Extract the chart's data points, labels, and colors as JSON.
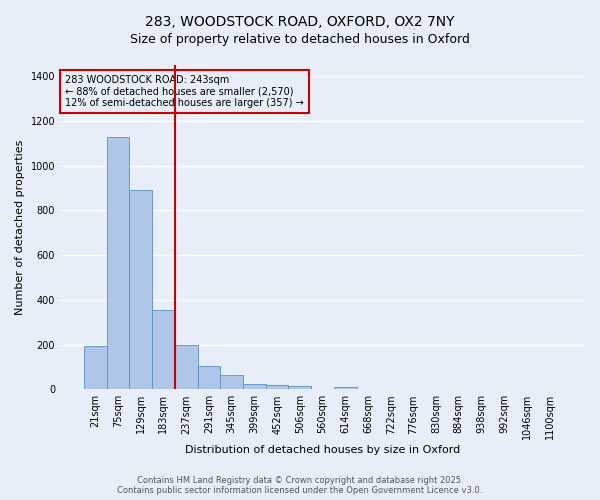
{
  "title_line1": "283, WOODSTOCK ROAD, OXFORD, OX2 7NY",
  "title_line2": "Size of property relative to detached houses in Oxford",
  "xlabel": "Distribution of detached houses by size in Oxford",
  "ylabel": "Number of detached properties",
  "categories": [
    "21sqm",
    "75sqm",
    "129sqm",
    "183sqm",
    "237sqm",
    "291sqm",
    "345sqm",
    "399sqm",
    "452sqm",
    "506sqm",
    "560sqm",
    "614sqm",
    "668sqm",
    "722sqm",
    "776sqm",
    "830sqm",
    "884sqm",
    "938sqm",
    "992sqm",
    "1046sqm",
    "1100sqm"
  ],
  "values": [
    195,
    1130,
    893,
    353,
    196,
    103,
    62,
    25,
    20,
    13,
    0,
    12,
    0,
    0,
    0,
    0,
    0,
    0,
    0,
    0,
    0
  ],
  "bar_color": "#aec6e8",
  "bar_edge_color": "#5b8ec4",
  "background_color": "#e8eef8",
  "grid_color": "#ffffff",
  "vline_color": "#cc0000",
  "annotation_title": "283 WOODSTOCK ROAD: 243sqm",
  "annotation_line1": "← 88% of detached houses are smaller (2,570)",
  "annotation_line2": "12% of semi-detached houses are larger (357) →",
  "annotation_box_color": "#cc0000",
  "ylim": [
    0,
    1450
  ],
  "yticks": [
    0,
    200,
    400,
    600,
    800,
    1000,
    1200,
    1400
  ],
  "footer_line1": "Contains HM Land Registry data © Crown copyright and database right 2025.",
  "footer_line2": "Contains public sector information licensed under the Open Government Licence v3.0.",
  "title_fontsize": 10,
  "subtitle_fontsize": 9,
  "tick_fontsize": 7,
  "label_fontsize": 8,
  "annotation_fontsize": 7,
  "footer_fontsize": 6
}
